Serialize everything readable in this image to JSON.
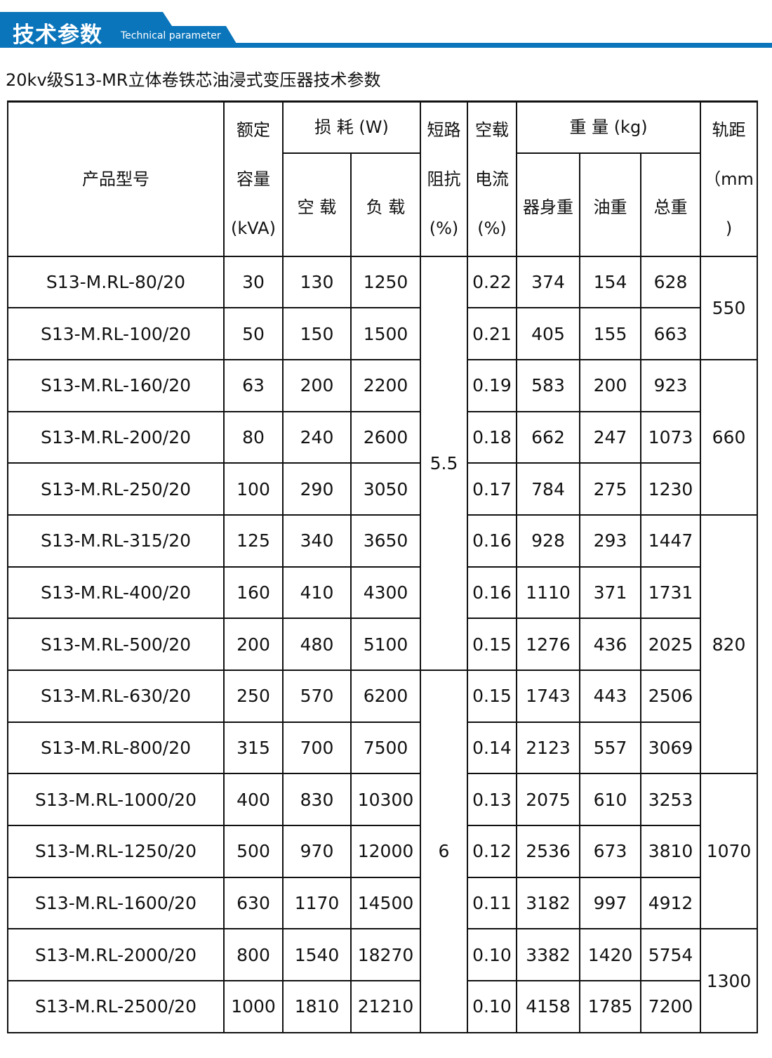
{
  "banner": {
    "title": "技术参数",
    "subtitle": "Technical parameter",
    "color": "#0b75bb"
  },
  "table_title": "20kv级S13-MR立体卷铁芯油浸式变压器技术参数",
  "headers": {
    "model": "产品型号",
    "capacity": [
      "额定",
      "容量",
      "(kVA)"
    ],
    "loss": "损 耗 (W)",
    "loss_noload": "空 载",
    "loss_load": "负 载",
    "impedance": [
      "短路",
      "阻抗",
      "(%)"
    ],
    "noload_current": [
      "空载",
      "电流",
      "(%)"
    ],
    "weight": "重 量 (kg)",
    "body_weight": "器身重",
    "oil_weight": "油重",
    "total_weight": "总重",
    "gauge": [
      "轨距",
      "（mm",
      ")"
    ]
  },
  "rows": [
    [
      "S13-M.RL-80/20",
      "30",
      "130",
      "1250",
      "0.22",
      "374",
      "154",
      "628"
    ],
    [
      "S13-M.RL-100/20",
      "50",
      "150",
      "1500",
      "0.21",
      "405",
      "155",
      "663"
    ],
    [
      "S13-M.RL-160/20",
      "63",
      "200",
      "2200",
      "0.19",
      "583",
      "200",
      "923"
    ],
    [
      "S13-M.RL-200/20",
      "80",
      "240",
      "2600",
      "0.18",
      "662",
      "247",
      "1073"
    ],
    [
      "S13-M.RL-250/20",
      "100",
      "290",
      "3050",
      "0.17",
      "784",
      "275",
      "1230"
    ],
    [
      "S13-M.RL-315/20",
      "125",
      "340",
      "3650",
      "0.16",
      "928",
      "293",
      "1447"
    ],
    [
      "S13-M.RL-400/20",
      "160",
      "410",
      "4300",
      "0.16",
      "1110",
      "371",
      "1731"
    ],
    [
      "S13-M.RL-500/20",
      "200",
      "480",
      "5100",
      "0.15",
      "1276",
      "436",
      "2025"
    ],
    [
      "S13-M.RL-630/20",
      "250",
      "570",
      "6200",
      "0.15",
      "1743",
      "443",
      "2506"
    ],
    [
      "S13-M.RL-800/20",
      "315",
      "700",
      "7500",
      "0.14",
      "2123",
      "557",
      "3069"
    ],
    [
      "S13-M.RL-1000/20",
      "400",
      "830",
      "10300",
      "0.13",
      "2075",
      "610",
      "3253"
    ],
    [
      "S13-M.RL-1250/20",
      "500",
      "970",
      "12000",
      "0.12",
      "2536",
      "673",
      "3810"
    ],
    [
      "S13-M.RL-1600/20",
      "630",
      "1170",
      "14500",
      "0.11",
      "3182",
      "997",
      "4912"
    ],
    [
      "S13-M.RL-2000/20",
      "800",
      "1540",
      "18270",
      "0.10",
      "3382",
      "1420",
      "5754"
    ],
    [
      "S13-M.RL-2500/20",
      "1000",
      "1810",
      "21210",
      "0.10",
      "4158",
      "1785",
      "7200"
    ]
  ],
  "impedance_groups": [
    {
      "value": "5.5",
      "rows": 8
    },
    {
      "value": "6",
      "rows": 7
    }
  ],
  "gauge_groups": [
    {
      "value": "550",
      "rows": 2
    },
    {
      "value": "660",
      "rows": 3
    },
    {
      "value": "820",
      "rows": 5
    },
    {
      "value": "1070",
      "rows": 3
    },
    {
      "value": "1300",
      "rows": 2
    }
  ]
}
